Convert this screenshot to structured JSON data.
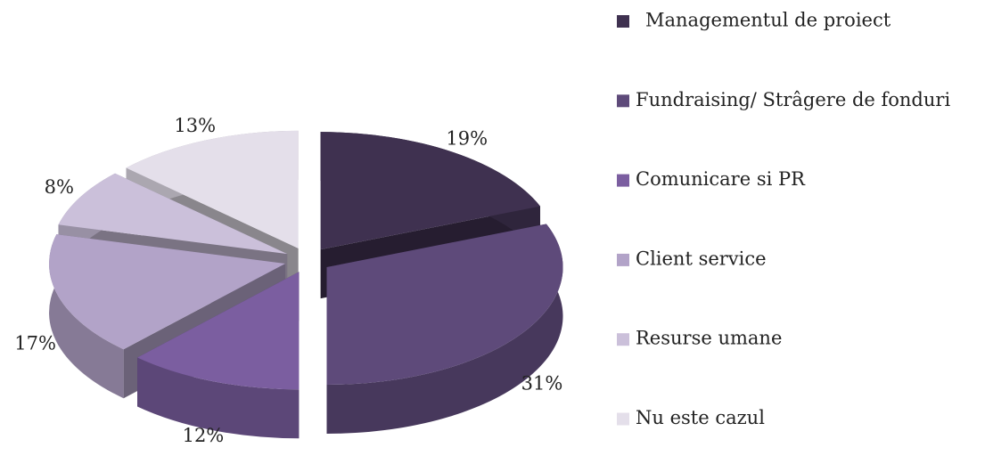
{
  "chart_data": {
    "type": "pie",
    "categories": [
      "Managementul de proiect",
      "Fundraising/ Strâgere de fonduri",
      "Comunicare si PR",
      "Client service",
      "Resurse umane",
      "Nu este cazul"
    ],
    "values": [
      19,
      31,
      12,
      17,
      8,
      13
    ],
    "value_labels": [
      "19%",
      "31%",
      "12%",
      "17%",
      "8%",
      "13%"
    ],
    "colors": [
      "#3f3150",
      "#5e4a7a",
      "#7b5ea0",
      "#b2a3c8",
      "#cbc0da",
      "#e4dfea"
    ],
    "legend": "right"
  }
}
